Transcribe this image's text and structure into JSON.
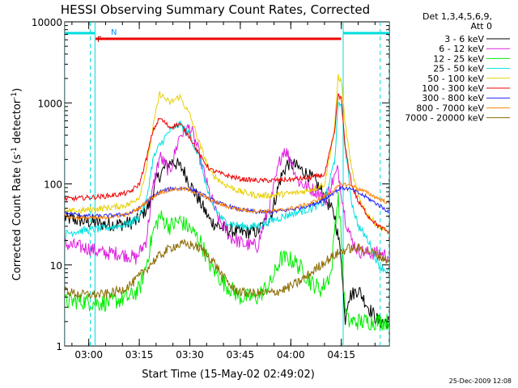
{
  "chart_data": {
    "type": "line",
    "title": "HESSI Observing Summary Count Rates, Corrected",
    "xlabel": "Start Time (15-May-02 02:49:02)",
    "ylabel_main": "Corrected Count Rate (s",
    "ylabel_sup1": "-1",
    "ylabel_mid": " detector",
    "ylabel_sup2": "-1",
    "ylabel_end": ")",
    "yscale": "log",
    "ylim": [
      1,
      10000
    ],
    "xlim_minutes": [
      2.8167,
      99.2
    ],
    "x_ticks": [
      {
        "label": "03:00",
        "minute": 9.95
      },
      {
        "label": "03:15",
        "minute": 24.95
      },
      {
        "label": "03:30",
        "minute": 39.95
      },
      {
        "label": "03:45",
        "minute": 54.95
      },
      {
        "label": "04:00",
        "minute": 69.95
      },
      {
        "label": "04:15",
        "minute": 84.95
      }
    ],
    "y_ticks": [
      {
        "label": "1",
        "value": 1
      },
      {
        "label": "10",
        "value": 10
      },
      {
        "label": "100",
        "value": 100
      },
      {
        "label": "1000",
        "value": 1000
      },
      {
        "label": "10000",
        "value": 10000
      }
    ],
    "legend_header": [
      "Det 1,3,4,5,6,9,",
      "Att 0"
    ],
    "legend_placement": "right",
    "footer_date": "25-Dec-2009 12:08",
    "flag_labels": {
      "night": "N",
      "flare": "F"
    },
    "flags": {
      "night": [
        [
          2.8,
          11.8
        ],
        [
          85.5,
          99.2
        ]
      ],
      "flare": [
        [
          12.0,
          84.9
        ]
      ],
      "vlines_solid": [
        2.8,
        11.8,
        85.5
      ],
      "vlines_dashed": [
        10.4,
        96.5,
        99.2
      ]
    },
    "series": [
      {
        "name": "3 - 6 keV",
        "color": "#000000",
        "points": [
          [
            2.8,
            38
          ],
          [
            6,
            36
          ],
          [
            10,
            34
          ],
          [
            14,
            32
          ],
          [
            20,
            32
          ],
          [
            24,
            34
          ],
          [
            28,
            55
          ],
          [
            30,
            110
          ],
          [
            33,
            170
          ],
          [
            35,
            190
          ],
          [
            38,
            150
          ],
          [
            40,
            100
          ],
          [
            43,
            60
          ],
          [
            46,
            35
          ],
          [
            50,
            28
          ],
          [
            55,
            25
          ],
          [
            60,
            26
          ],
          [
            64,
            40
          ],
          [
            67,
            120
          ],
          [
            69,
            180
          ],
          [
            71,
            170
          ],
          [
            74,
            140
          ],
          [
            77,
            110
          ],
          [
            80,
            70
          ],
          [
            83,
            40
          ],
          [
            85,
            12
          ],
          [
            86,
            2
          ],
          [
            87,
            4
          ],
          [
            90,
            5
          ],
          [
            93,
            3
          ],
          [
            96,
            2
          ],
          [
            99.2,
            2
          ]
        ]
      },
      {
        "name": "6 - 12 keV",
        "color": "#e020e0",
        "points": [
          [
            2.8,
            18
          ],
          [
            6,
            17
          ],
          [
            10,
            16
          ],
          [
            14,
            14
          ],
          [
            18,
            14
          ],
          [
            22,
            13
          ],
          [
            24,
            12
          ],
          [
            27,
            20
          ],
          [
            29,
            90
          ],
          [
            31,
            220
          ],
          [
            34,
            140
          ],
          [
            37,
            400
          ],
          [
            40,
            500
          ],
          [
            42,
            300
          ],
          [
            45,
            100
          ],
          [
            48,
            40
          ],
          [
            52,
            22
          ],
          [
            56,
            18
          ],
          [
            60,
            17
          ],
          [
            64,
            60
          ],
          [
            67,
            220
          ],
          [
            68,
            270
          ],
          [
            70,
            200
          ],
          [
            72,
            110
          ],
          [
            75,
            90
          ],
          [
            78,
            80
          ],
          [
            80,
            60
          ],
          [
            82,
            100
          ],
          [
            84,
            150
          ],
          [
            86,
            40
          ],
          [
            88,
            20
          ],
          [
            90,
            15
          ],
          [
            93,
            14
          ],
          [
            96,
            14
          ],
          [
            99.2,
            13
          ]
        ]
      },
      {
        "name": "12 - 25 keV",
        "color": "#00ee00",
        "points": [
          [
            2.8,
            3.5
          ],
          [
            6,
            3.6
          ],
          [
            10,
            3.5
          ],
          [
            14,
            3.4
          ],
          [
            18,
            3.6
          ],
          [
            22,
            4
          ],
          [
            25,
            5
          ],
          [
            27,
            10
          ],
          [
            29,
            25
          ],
          [
            31,
            40
          ],
          [
            34,
            30
          ],
          [
            37,
            35
          ],
          [
            40,
            28
          ],
          [
            43,
            20
          ],
          [
            46,
            10
          ],
          [
            50,
            6
          ],
          [
            55,
            4
          ],
          [
            60,
            4
          ],
          [
            64,
            6
          ],
          [
            67,
            12
          ],
          [
            69,
            12
          ],
          [
            71,
            11
          ],
          [
            73,
            9
          ],
          [
            76,
            6
          ],
          [
            79,
            5
          ],
          [
            82,
            8
          ],
          [
            83,
            30
          ],
          [
            84,
            70
          ],
          [
            85,
            20
          ],
          [
            86,
            3
          ],
          [
            87,
            2
          ],
          [
            90,
            2
          ],
          [
            93,
            2
          ],
          [
            96,
            2
          ],
          [
            99.2,
            2
          ]
        ]
      },
      {
        "name": "25 - 50 keV",
        "color": "#00e0e0",
        "points": [
          [
            2.8,
            24
          ],
          [
            6,
            26
          ],
          [
            10,
            27
          ],
          [
            14,
            28
          ],
          [
            18,
            30
          ],
          [
            22,
            32
          ],
          [
            25,
            40
          ],
          [
            27,
            60
          ],
          [
            29,
            200
          ],
          [
            31,
            300
          ],
          [
            34,
            450
          ],
          [
            37,
            550
          ],
          [
            40,
            400
          ],
          [
            43,
            200
          ],
          [
            46,
            60
          ],
          [
            50,
            35
          ],
          [
            55,
            30
          ],
          [
            60,
            30
          ],
          [
            64,
            35
          ],
          [
            68,
            40
          ],
          [
            72,
            45
          ],
          [
            76,
            50
          ],
          [
            80,
            60
          ],
          [
            83,
            200
          ],
          [
            84,
            900
          ],
          [
            85,
            1000
          ],
          [
            86,
            300
          ],
          [
            88,
            60
          ],
          [
            90,
            30
          ],
          [
            93,
            20
          ],
          [
            96,
            10
          ],
          [
            99.2,
            8
          ]
        ]
      },
      {
        "name": "50 - 100 keV",
        "color": "#e8d000",
        "points": [
          [
            2.8,
            45
          ],
          [
            6,
            46
          ],
          [
            10,
            48
          ],
          [
            14,
            50
          ],
          [
            18,
            52
          ],
          [
            22,
            56
          ],
          [
            25,
            70
          ],
          [
            27,
            150
          ],
          [
            29,
            500
          ],
          [
            31,
            1300
          ],
          [
            34,
            1000
          ],
          [
            37,
            1200
          ],
          [
            40,
            700
          ],
          [
            43,
            300
          ],
          [
            46,
            140
          ],
          [
            50,
            100
          ],
          [
            55,
            80
          ],
          [
            60,
            72
          ],
          [
            64,
            72
          ],
          [
            68,
            75
          ],
          [
            72,
            78
          ],
          [
            76,
            85
          ],
          [
            80,
            100
          ],
          [
            83,
            500
          ],
          [
            84,
            2200
          ],
          [
            85,
            1800
          ],
          [
            86,
            600
          ],
          [
            88,
            150
          ],
          [
            90,
            70
          ],
          [
            93,
            40
          ],
          [
            96,
            30
          ],
          [
            99.2,
            25
          ]
        ]
      },
      {
        "name": "100 - 300 keV",
        "color": "#ee0000",
        "points": [
          [
            2.8,
            65
          ],
          [
            6,
            66
          ],
          [
            10,
            68
          ],
          [
            14,
            70
          ],
          [
            18,
            73
          ],
          [
            22,
            78
          ],
          [
            25,
            100
          ],
          [
            27,
            200
          ],
          [
            29,
            450
          ],
          [
            31,
            650
          ],
          [
            34,
            500
          ],
          [
            37,
            550
          ],
          [
            40,
            380
          ],
          [
            43,
            220
          ],
          [
            46,
            150
          ],
          [
            50,
            130
          ],
          [
            55,
            115
          ],
          [
            60,
            110
          ],
          [
            64,
            110
          ],
          [
            68,
            112
          ],
          [
            72,
            115
          ],
          [
            76,
            120
          ],
          [
            80,
            130
          ],
          [
            83,
            450
          ],
          [
            84,
            1300
          ],
          [
            85,
            1100
          ],
          [
            86,
            300
          ],
          [
            88,
            100
          ],
          [
            90,
            60
          ],
          [
            93,
            40
          ],
          [
            96,
            30
          ],
          [
            99.2,
            25
          ]
        ]
      },
      {
        "name": "300 - 800 keV",
        "color": "#2020ff",
        "points": [
          [
            2.8,
            44
          ],
          [
            6,
            42
          ],
          [
            10,
            40
          ],
          [
            14,
            40
          ],
          [
            18,
            41
          ],
          [
            22,
            43
          ],
          [
            25,
            50
          ],
          [
            28,
            65
          ],
          [
            31,
            80
          ],
          [
            35,
            88
          ],
          [
            39,
            88
          ],
          [
            42,
            80
          ],
          [
            46,
            65
          ],
          [
            50,
            55
          ],
          [
            55,
            48
          ],
          [
            60,
            45
          ],
          [
            64,
            45
          ],
          [
            68,
            47
          ],
          [
            72,
            50
          ],
          [
            76,
            55
          ],
          [
            80,
            65
          ],
          [
            83,
            80
          ],
          [
            85,
            90
          ],
          [
            88,
            85
          ],
          [
            92,
            70
          ],
          [
            96,
            55
          ],
          [
            99.2,
            45
          ]
        ]
      },
      {
        "name": "800 - 7000 keV",
        "color": "#ff8000",
        "points": [
          [
            2.8,
            40
          ],
          [
            6,
            38
          ],
          [
            10,
            38
          ],
          [
            14,
            38
          ],
          [
            18,
            40
          ],
          [
            22,
            43
          ],
          [
            25,
            50
          ],
          [
            28,
            65
          ],
          [
            31,
            78
          ],
          [
            35,
            86
          ],
          [
            39,
            86
          ],
          [
            42,
            78
          ],
          [
            46,
            64
          ],
          [
            50,
            54
          ],
          [
            55,
            48
          ],
          [
            60,
            46
          ],
          [
            64,
            46
          ],
          [
            68,
            48
          ],
          [
            72,
            52
          ],
          [
            76,
            58
          ],
          [
            80,
            70
          ],
          [
            83,
            85
          ],
          [
            85,
            100
          ],
          [
            88,
            95
          ],
          [
            92,
            80
          ],
          [
            96,
            66
          ],
          [
            99.2,
            58
          ]
        ]
      },
      {
        "name": "7000 - 20000 keV",
        "color": "#8b6b00",
        "points": [
          [
            2.8,
            5
          ],
          [
            5,
            4.5
          ],
          [
            8,
            4.3
          ],
          [
            11,
            4.3
          ],
          [
            14,
            4.3
          ],
          [
            17,
            4.5
          ],
          [
            20,
            5
          ],
          [
            23,
            6
          ],
          [
            26,
            8
          ],
          [
            29,
            11
          ],
          [
            32,
            14
          ],
          [
            35,
            17
          ],
          [
            38,
            18
          ],
          [
            41,
            17.5
          ],
          [
            44,
            15
          ],
          [
            47,
            11
          ],
          [
            50,
            7
          ],
          [
            53,
            5
          ],
          [
            56,
            4.5
          ],
          [
            60,
            4.5
          ],
          [
            64,
            4.5
          ],
          [
            68,
            5
          ],
          [
            72,
            6
          ],
          [
            76,
            8
          ],
          [
            80,
            11
          ],
          [
            84,
            14
          ],
          [
            87,
            16
          ],
          [
            90,
            16
          ],
          [
            93,
            15
          ],
          [
            96,
            13
          ],
          [
            99.2,
            11
          ]
        ]
      }
    ]
  }
}
